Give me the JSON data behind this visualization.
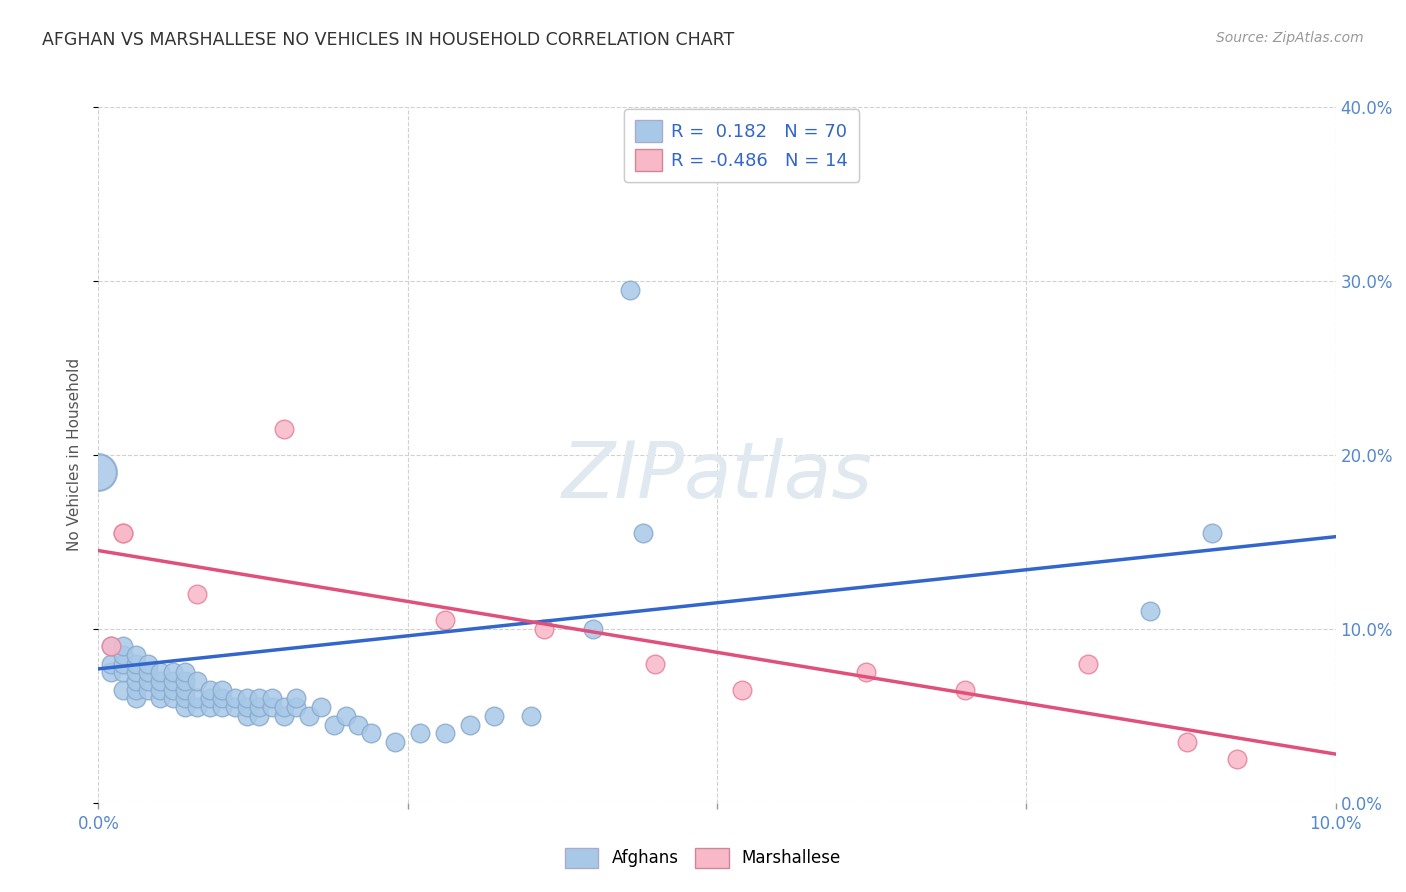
{
  "title": "AFGHAN VS MARSHALLESE NO VEHICLES IN HOUSEHOLD CORRELATION CHART",
  "source": "Source: ZipAtlas.com",
  "ylabel": "No Vehicles in Household",
  "xlim": [
    0.0,
    0.1
  ],
  "ylim": [
    0.0,
    0.4
  ],
  "xaxis_ticks": [
    0.0,
    0.025,
    0.05,
    0.075,
    0.1
  ],
  "yaxis_ticks": [
    0.0,
    0.1,
    0.2,
    0.3,
    0.4
  ],
  "afghans_R": 0.182,
  "afghans_N": 70,
  "marshallese_R": -0.486,
  "marshallese_N": 14,
  "blue_color": "#A8C8E8",
  "blue_edge_color": "#88AACC",
  "blue_line_color": "#3366CC",
  "pink_color": "#F8B8C8",
  "pink_edge_color": "#E8809A",
  "pink_line_color": "#E0507A",
  "background_color": "#FFFFFF",
  "grid_color": "#CCCCCC",
  "title_color": "#333333",
  "axis_tick_color": "#5588CC",
  "watermark_color": "#E0E8F0",
  "afghans_x": [
    0.001,
    0.001,
    0.001,
    0.002,
    0.002,
    0.002,
    0.002,
    0.002,
    0.003,
    0.003,
    0.003,
    0.003,
    0.003,
    0.003,
    0.004,
    0.004,
    0.004,
    0.004,
    0.005,
    0.005,
    0.005,
    0.005,
    0.006,
    0.006,
    0.006,
    0.006,
    0.007,
    0.007,
    0.007,
    0.007,
    0.007,
    0.008,
    0.008,
    0.008,
    0.009,
    0.009,
    0.009,
    0.01,
    0.01,
    0.01,
    0.011,
    0.011,
    0.012,
    0.012,
    0.012,
    0.013,
    0.013,
    0.013,
    0.014,
    0.014,
    0.015,
    0.015,
    0.016,
    0.016,
    0.017,
    0.018,
    0.019,
    0.02,
    0.021,
    0.022,
    0.024,
    0.026,
    0.028,
    0.03,
    0.032,
    0.035,
    0.04,
    0.044,
    0.085,
    0.09
  ],
  "afghans_y": [
    0.075,
    0.08,
    0.09,
    0.065,
    0.075,
    0.08,
    0.085,
    0.09,
    0.06,
    0.065,
    0.07,
    0.075,
    0.08,
    0.085,
    0.065,
    0.07,
    0.075,
    0.08,
    0.06,
    0.065,
    0.07,
    0.075,
    0.06,
    0.065,
    0.07,
    0.075,
    0.055,
    0.06,
    0.065,
    0.07,
    0.075,
    0.055,
    0.06,
    0.07,
    0.055,
    0.06,
    0.065,
    0.055,
    0.06,
    0.065,
    0.055,
    0.06,
    0.05,
    0.055,
    0.06,
    0.05,
    0.055,
    0.06,
    0.055,
    0.06,
    0.05,
    0.055,
    0.055,
    0.06,
    0.05,
    0.055,
    0.045,
    0.05,
    0.045,
    0.04,
    0.035,
    0.04,
    0.04,
    0.045,
    0.05,
    0.05,
    0.1,
    0.155,
    0.11,
    0.155
  ],
  "afghans_large": [
    0
  ],
  "afghans_large_x": [
    0.0
  ],
  "afghans_large_y": [
    0.19
  ],
  "marshallese_x": [
    0.001,
    0.002,
    0.002,
    0.008,
    0.015,
    0.028,
    0.036,
    0.045,
    0.052,
    0.062,
    0.07,
    0.08,
    0.088,
    0.092
  ],
  "marshallese_y": [
    0.09,
    0.155,
    0.155,
    0.12,
    0.215,
    0.105,
    0.1,
    0.08,
    0.065,
    0.075,
    0.065,
    0.08,
    0.035,
    0.025
  ],
  "afghans_outlier_x": [
    0.043
  ],
  "afghans_outlier_y": [
    0.295
  ],
  "blue_trend_x0": 0.0,
  "blue_trend_y0": 0.077,
  "blue_trend_x1": 0.1,
  "blue_trend_y1": 0.153,
  "pink_trend_x0": 0.0,
  "pink_trend_y0": 0.145,
  "pink_trend_x1": 0.1,
  "pink_trend_y1": 0.028
}
